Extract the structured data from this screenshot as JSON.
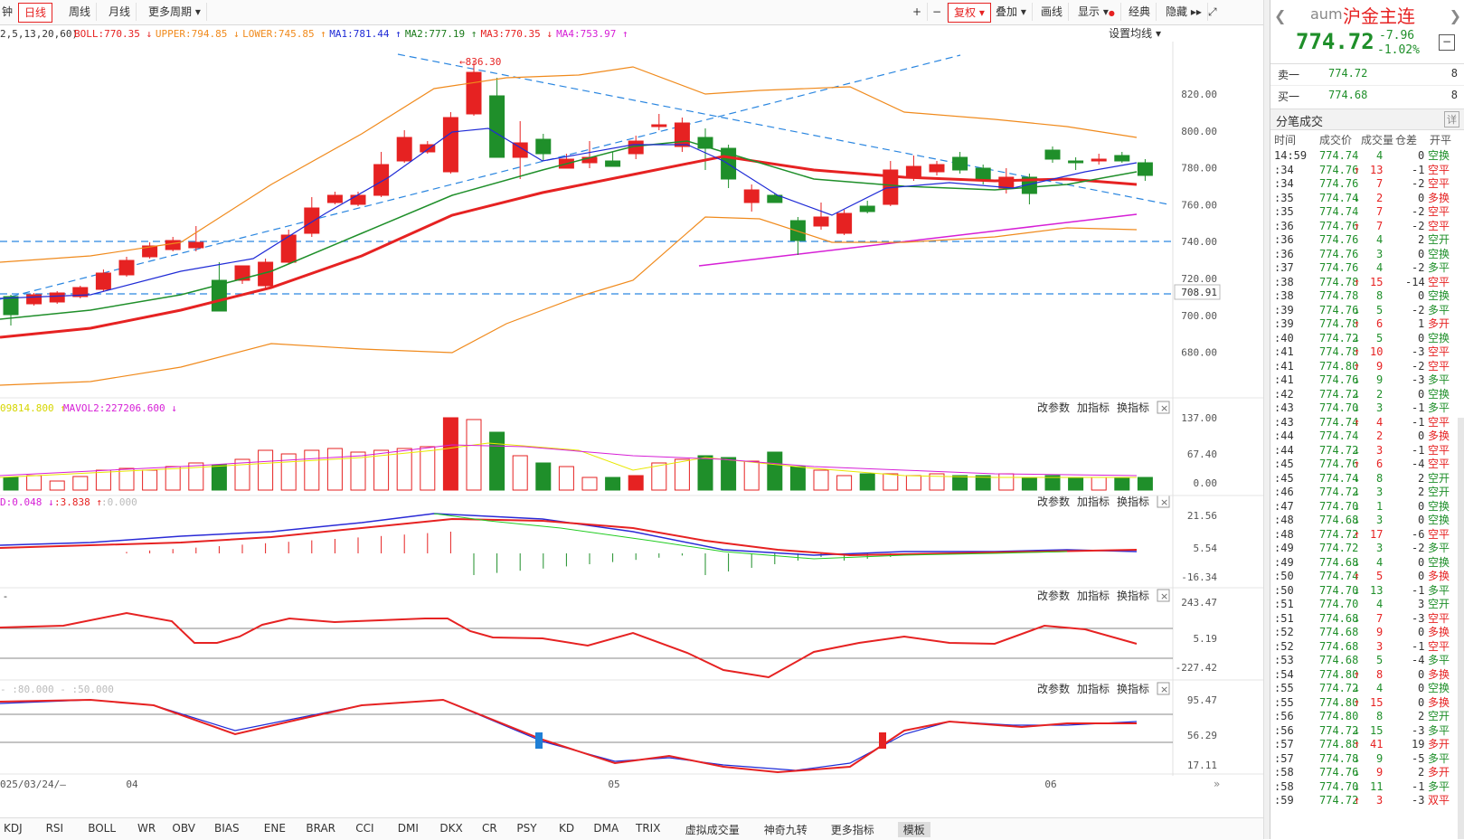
{
  "toolbar": {
    "left_cut": "钟",
    "periods": [
      "日线",
      "周线",
      "月线",
      "更多周期"
    ],
    "right_items": [
      "+",
      "−",
      "复权",
      "叠加",
      "画线",
      "显示",
      "经典",
      "隐藏"
    ],
    "active_period": "日线",
    "active_right": "复权"
  },
  "indicator_line": {
    "params": "2,5,13,20,60)",
    "items": [
      {
        "text": "BOLL:770.35",
        "arrow": "↓",
        "color": "#e62222"
      },
      {
        "text": "UPPER:794.85",
        "arrow": "↓",
        "color": "#f08a1c"
      },
      {
        "text": "LOWER:745.85",
        "arrow": "↑",
        "color": "#f08a1c"
      },
      {
        "text": "MA1:781.44",
        "arrow": "↑",
        "color": "#1f2bd6"
      },
      {
        "text": "MA2:777.19",
        "arrow": "↑",
        "color": "#1a7a1a"
      },
      {
        "text": "MA3:770.35",
        "arrow": "↓",
        "color": "#e62222"
      },
      {
        "text": "MA4:753.97",
        "arrow": "↑",
        "color": "#d61fd6"
      }
    ],
    "setting": "设置均线"
  },
  "price_axis": [
    "820.00",
    "800.00",
    "780.00",
    "760.00",
    "740.00",
    "720.00",
    "700.00",
    "680.00"
  ],
  "price_marker": "708.91",
  "peak_label": "836.30",
  "vol_label": {
    "left": "09814.800",
    "mavol2": "MAVOL2:227206.600"
  },
  "vol_axis": [
    "137.00",
    "67.40",
    "0.00"
  ],
  "macd_label": {
    "a": "D:0.048",
    "b": ":3.838",
    "c": ":0.000"
  },
  "macd_axis": [
    "21.56",
    "5.54",
    "-16.34"
  ],
  "cci_axis": [
    "243.47",
    "5.19",
    "-227.42"
  ],
  "kd_label": {
    "a": ":80.000",
    "b": ":50.000"
  },
  "kd_axis": [
    "95.47",
    "56.29",
    "17.11"
  ],
  "panel_buttons": [
    "改参数",
    "加指标",
    "换指标"
  ],
  "date_axis": {
    "left": "025/03/24/—",
    "labels": [
      "04",
      "05",
      "06"
    ]
  },
  "bottom_tabs": [
    "KDJ",
    "RSI",
    "BOLL",
    "WR",
    "OBV",
    "BIAS",
    "ENE",
    "BRAR",
    "CCI",
    "DMI",
    "DKX",
    "CR",
    "PSY",
    "KD",
    "DMA",
    "TRIX",
    "虚拟成交量",
    "神奇九转",
    "更多指标",
    "模板"
  ],
  "bottom_active": "模板",
  "quote": {
    "code": "aum",
    "name": "沪金主连",
    "price": "774.72",
    "change": "-7.96",
    "pct": "-1.02%",
    "sell_label": "卖一",
    "sell_price": "774.72",
    "sell_vol": "8",
    "buy_label": "买一",
    "buy_price": "774.68",
    "buy_vol": "8",
    "ticks_title": "分笔成交",
    "detail": "详",
    "headers": [
      "时间",
      "成交价",
      "成交量",
      "仓差",
      "开平"
    ]
  },
  "ticks": [
    [
      "14:59",
      "774.74",
      "",
      "4",
      "0",
      "空换",
      "g"
    ],
    [
      ":34",
      "774.76",
      "↑",
      "13",
      "-1",
      "空平",
      "r"
    ],
    [
      ":34",
      "774.76",
      "",
      "7",
      "-2",
      "空平",
      "r"
    ],
    [
      ":35",
      "774.74",
      "↓",
      "2",
      "0",
      "多换",
      "r"
    ],
    [
      ":35",
      "774.74",
      "",
      "7",
      "-2",
      "空平",
      "r"
    ],
    [
      ":36",
      "774.76",
      "↑",
      "7",
      "-2",
      "空平",
      "r"
    ],
    [
      ":36",
      "774.76",
      "",
      "4",
      "2",
      "空开",
      "g"
    ],
    [
      ":36",
      "774.76",
      "",
      "3",
      "0",
      "空换",
      "g"
    ],
    [
      ":37",
      "774.76",
      "",
      "4",
      "-2",
      "多平",
      "g"
    ],
    [
      ":38",
      "774.78",
      "↑",
      "15",
      "-14",
      "空平",
      "r"
    ],
    [
      ":38",
      "774.78",
      "",
      "8",
      "0",
      "空换",
      "g"
    ],
    [
      ":39",
      "774.76",
      "↓",
      "5",
      "-2",
      "多平",
      "g"
    ],
    [
      ":39",
      "774.78",
      "↑",
      "6",
      "1",
      "多开",
      "r"
    ],
    [
      ":40",
      "774.72",
      "↓",
      "5",
      "0",
      "空换",
      "g"
    ],
    [
      ":41",
      "774.78",
      "↑",
      "10",
      "-3",
      "空平",
      "r"
    ],
    [
      ":41",
      "774.80",
      "↑",
      "9",
      "-2",
      "空平",
      "r"
    ],
    [
      ":41",
      "774.76",
      "↓",
      "9",
      "-3",
      "多平",
      "g"
    ],
    [
      ":42",
      "774.72",
      "↓",
      "2",
      "0",
      "空换",
      "g"
    ],
    [
      ":43",
      "774.70",
      "↓",
      "3",
      "-1",
      "多平",
      "g"
    ],
    [
      ":43",
      "774.74",
      "↑",
      "4",
      "-1",
      "空平",
      "r"
    ],
    [
      ":44",
      "774.74",
      "",
      "2",
      "0",
      "多换",
      "r"
    ],
    [
      ":44",
      "774.72",
      "↓",
      "3",
      "-1",
      "空平",
      "r"
    ],
    [
      ":45",
      "774.76",
      "↑",
      "6",
      "-4",
      "空平",
      "r"
    ],
    [
      ":45",
      "774.74",
      "↓",
      "8",
      "2",
      "空开",
      "g"
    ],
    [
      ":46",
      "774.72",
      "↓",
      "3",
      "2",
      "空开",
      "g"
    ],
    [
      ":47",
      "774.70",
      "↓",
      "1",
      "0",
      "空换",
      "g"
    ],
    [
      ":48",
      "774.68",
      "↓",
      "3",
      "0",
      "空换",
      "g"
    ],
    [
      ":48",
      "774.72",
      "↑",
      "17",
      "-6",
      "空平",
      "r"
    ],
    [
      ":49",
      "774.72",
      "",
      "3",
      "-2",
      "多平",
      "g"
    ],
    [
      ":49",
      "774.68",
      "↓",
      "4",
      "0",
      "空换",
      "g"
    ],
    [
      ":50",
      "774.74",
      "↑",
      "5",
      "0",
      "多换",
      "r"
    ],
    [
      ":50",
      "774.70",
      "↓",
      "13",
      "-1",
      "多平",
      "g"
    ],
    [
      ":51",
      "774.70",
      "",
      "4",
      "3",
      "空开",
      "g"
    ],
    [
      ":51",
      "774.68",
      "↓",
      "7",
      "-3",
      "空平",
      "r"
    ],
    [
      ":52",
      "774.68",
      "",
      "9",
      "0",
      "多换",
      "r"
    ],
    [
      ":52",
      "774.68",
      "",
      "3",
      "-1",
      "空平",
      "r"
    ],
    [
      ":53",
      "774.68",
      "",
      "5",
      "-4",
      "多平",
      "g"
    ],
    [
      ":54",
      "774.80",
      "↑",
      "8",
      "0",
      "多换",
      "r"
    ],
    [
      ":55",
      "774.72",
      "↓",
      "4",
      "0",
      "空换",
      "g"
    ],
    [
      ":55",
      "774.80",
      "↑",
      "15",
      "0",
      "多换",
      "r"
    ],
    [
      ":56",
      "774.80",
      "",
      "8",
      "2",
      "空开",
      "g"
    ],
    [
      ":56",
      "774.72",
      "↓",
      "15",
      "-3",
      "多平",
      "g"
    ],
    [
      ":57",
      "774.88",
      "↑",
      "41",
      "19",
      "多开",
      "r"
    ],
    [
      ":57",
      "774.78",
      "↓",
      "9",
      "-5",
      "多平",
      "g"
    ],
    [
      ":58",
      "774.76",
      "↓",
      "9",
      "2",
      "多开",
      "r"
    ],
    [
      ":58",
      "774.70",
      "↓",
      "11",
      "-1",
      "多平",
      "g"
    ],
    [
      ":59",
      "774.72",
      "↑",
      "3",
      "-3",
      "双平",
      "r"
    ]
  ],
  "colors": {
    "up": "#e62222",
    "down": "#1f8f2a",
    "blue": "#1f2bd6",
    "orange": "#f08a1c",
    "magenta": "#d61fd6",
    "dash": "#2a86e0"
  }
}
